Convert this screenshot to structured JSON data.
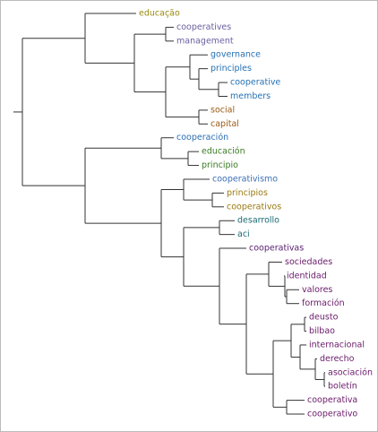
{
  "leaves": [
    {
      "label": "educação",
      "color": "#9a8a10"
    },
    {
      "label": "cooperatives",
      "color": "#6a5fa0"
    },
    {
      "label": "management",
      "color": "#6a5fa0"
    },
    {
      "label": "governance",
      "color": "#2470b4"
    },
    {
      "label": "principles",
      "color": "#2470b4"
    },
    {
      "label": "cooperative",
      "color": "#2470b4"
    },
    {
      "label": "members",
      "color": "#2470b4"
    },
    {
      "label": "social",
      "color": "#9a5a14"
    },
    {
      "label": "capital",
      "color": "#9a5a14"
    },
    {
      "label": "cooperación",
      "color": "#2a6fb4"
    },
    {
      "label": "educación",
      "color": "#3a7a24"
    },
    {
      "label": "principio",
      "color": "#3a7a24"
    },
    {
      "label": "cooperativismo",
      "color": "#3a6fb4"
    },
    {
      "label": "principios",
      "color": "#9a7a10"
    },
    {
      "label": "cooperativos",
      "color": "#9a7a10"
    },
    {
      "label": "desarrollo",
      "color": "#1a6a74"
    },
    {
      "label": "aci",
      "color": "#1a6a74"
    },
    {
      "label": "cooperativas",
      "color": "#5a2070"
    },
    {
      "label": "sociedades",
      "color": "#6a1a6a"
    },
    {
      "label": "identidad",
      "color": "#6a1a6a"
    },
    {
      "label": "valores",
      "color": "#6a1a6a"
    },
    {
      "label": "formación",
      "color": "#6a1a6a"
    },
    {
      "label": "deusto",
      "color": "#6a1a6a"
    },
    {
      "label": "bilbao",
      "color": "#6a1a6a"
    },
    {
      "label": "internacional",
      "color": "#6a1a6a"
    },
    {
      "label": "derecho",
      "color": "#6a1a6a"
    },
    {
      "label": "asociación",
      "color": "#6a1a6a"
    },
    {
      "label": "boletín",
      "color": "#6a1a6a"
    },
    {
      "label": "cooperativa",
      "color": "#6a1a6a"
    },
    {
      "label": "cooperativo",
      "color": "#6a1a6a"
    }
  ]
}
